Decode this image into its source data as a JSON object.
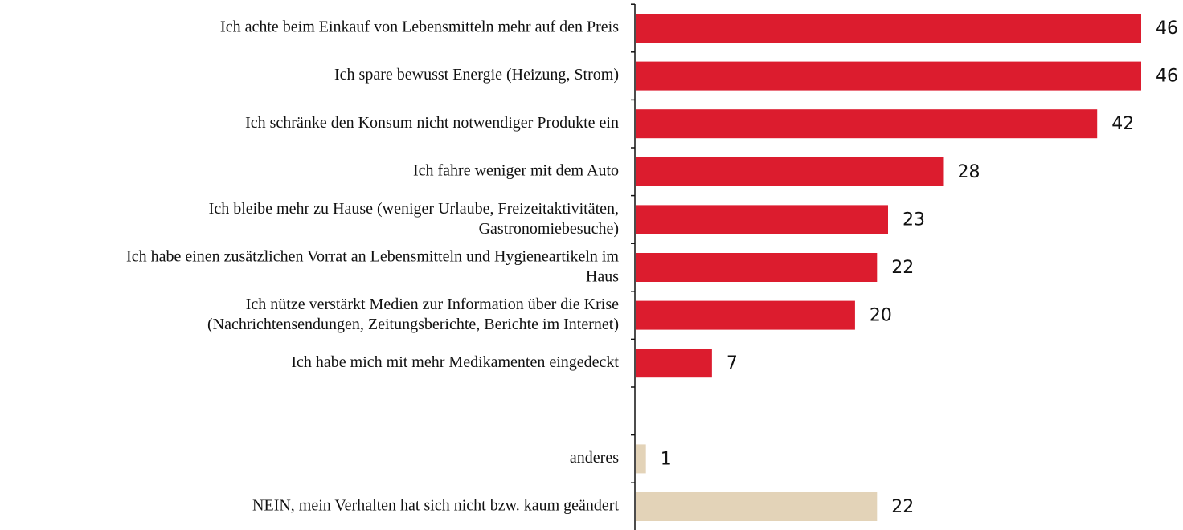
{
  "chart_data": {
    "type": "bar",
    "orientation": "horizontal",
    "categories": [
      "Ich achte beim Einkauf von Lebensmitteln mehr auf den Preis",
      "Ich spare bewusst Energie (Heizung, Strom)",
      "Ich schränke den Konsum nicht notwendiger Produkte ein",
      "Ich fahre weniger mit dem Auto",
      "Ich bleibe mehr zu Hause (weniger Urlaube, Freizeitaktivitäten,\nGastronomiebesuche)",
      "Ich habe einen zusätzlichen Vorrat an Lebensmitteln und Hygieneartikeln im\nHaus",
      "Ich nütze verstärkt Medien zur Information über die Krise\n(Nachrichtensendungen, Zeitungsberichte, Berichte im Internet)",
      "Ich habe mich mit mehr Medikamenten eingedeckt",
      null,
      "anderes",
      "NEIN, mein Verhalten hat sich nicht bzw. kaum geändert"
    ],
    "values": [
      46,
      46,
      42,
      28,
      23,
      22,
      20,
      7,
      null,
      1,
      22
    ],
    "colors": [
      "#dc1c2e",
      "#dc1c2e",
      "#dc1c2e",
      "#dc1c2e",
      "#dc1c2e",
      "#dc1c2e",
      "#dc1c2e",
      "#dc1c2e",
      null,
      "#e3d3b8",
      "#e3d3b8"
    ]
  }
}
